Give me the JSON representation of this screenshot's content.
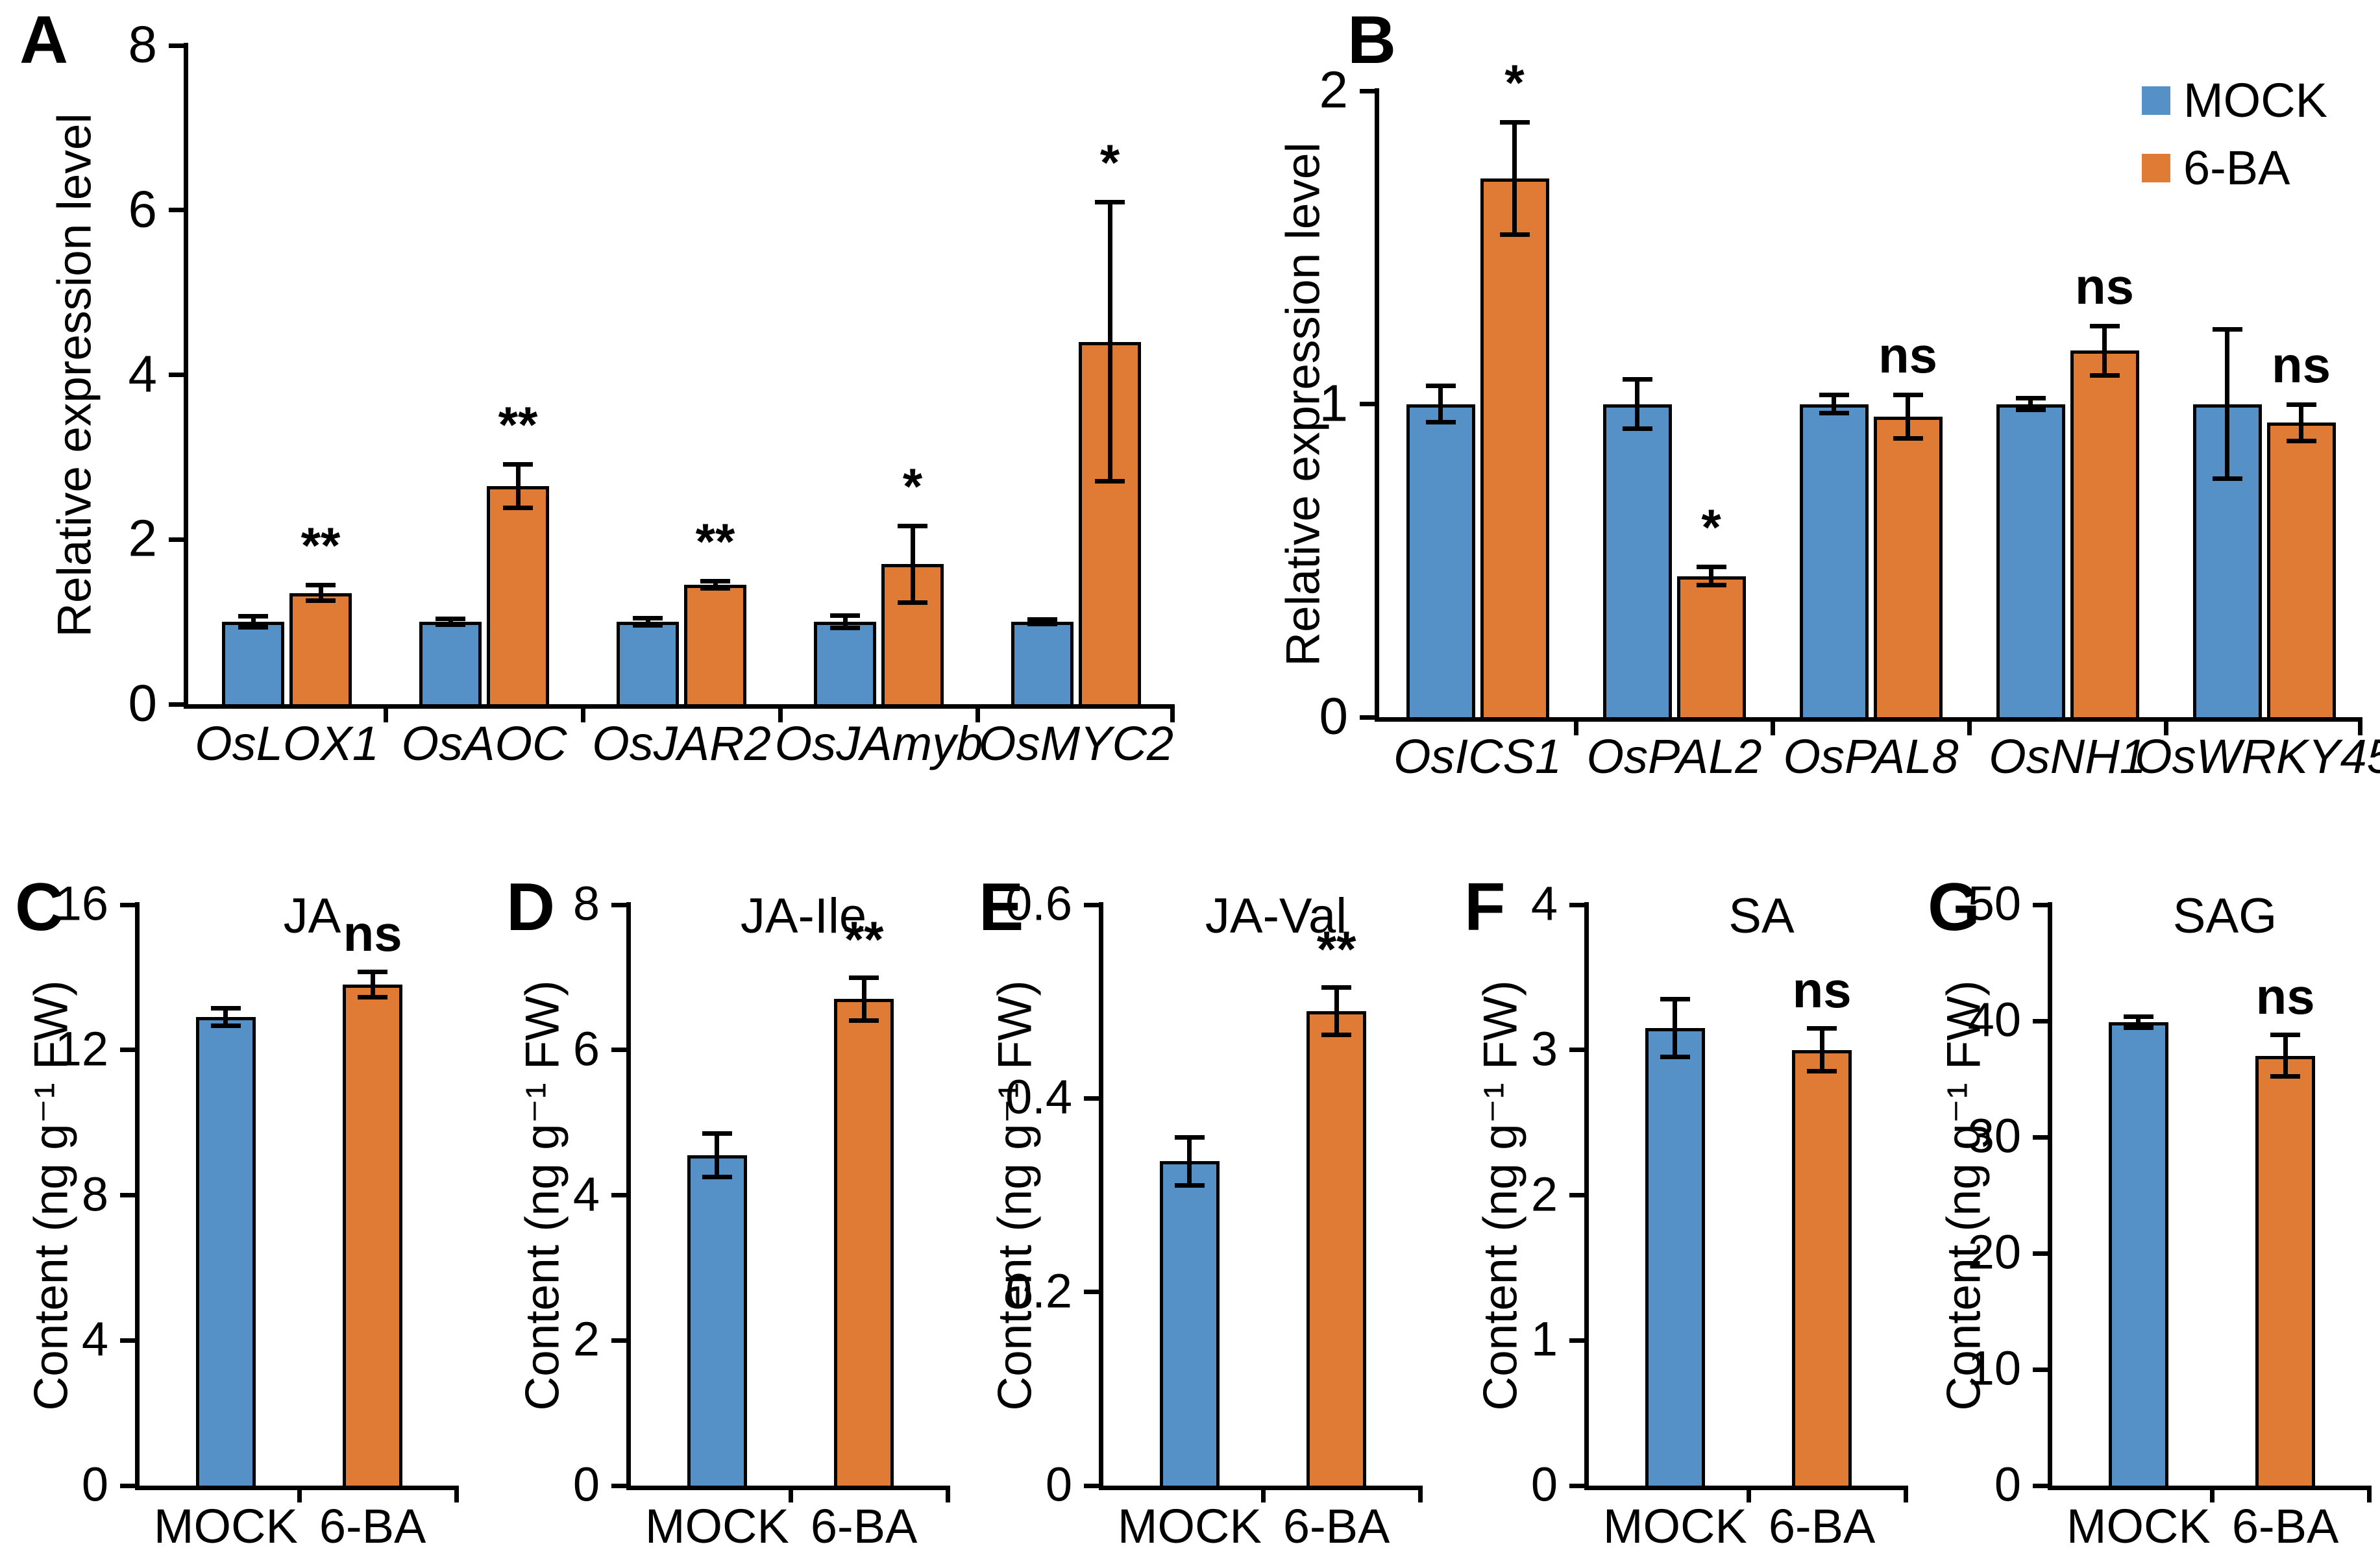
{
  "colors": {
    "mock": "#5590C7",
    "six_ba": "#E07B35",
    "axis": "#000000",
    "background": "#FFFFFF"
  },
  "legend": {
    "items": [
      {
        "label": "MOCK",
        "color": "mock"
      },
      {
        "label": "6-BA",
        "color": "six_ba"
      }
    ]
  },
  "chart_data": [
    {
      "panel": "A",
      "type": "bar",
      "title": null,
      "ylabel": "Relative expression level",
      "ylim": [
        0,
        8
      ],
      "yticks": [
        "0",
        "2",
        "4",
        "6",
        "8"
      ],
      "grid": false,
      "categories": [
        "OsLOX1",
        "OsAOC",
        "OsJAR2",
        "OsJAmyb",
        "OsMYC2"
      ],
      "categories_italic": true,
      "series": [
        {
          "name": "MOCK",
          "color": "mock",
          "values": [
            1.0,
            1.0,
            1.0,
            1.0,
            1.0
          ],
          "errors": [
            0.07,
            0.04,
            0.05,
            0.08,
            0.03
          ]
        },
        {
          "name": "6-BA",
          "color": "six_ba",
          "values": [
            1.35,
            2.65,
            1.45,
            1.7,
            4.4
          ],
          "errors": [
            0.1,
            0.27,
            0.05,
            0.47,
            1.7
          ]
        }
      ],
      "significance": [
        "**",
        "**",
        "**",
        "*",
        "*"
      ],
      "legend_visible": false
    },
    {
      "panel": "B",
      "type": "bar",
      "title": null,
      "ylabel": "Relative expression level",
      "ylim": [
        0,
        2
      ],
      "yticks": [
        "0",
        "1",
        "2"
      ],
      "grid": false,
      "categories": [
        "OsICS1",
        "OsPAL2",
        "OsPAL8",
        "OsNH1",
        "OsWRKY45"
      ],
      "categories_italic": true,
      "series": [
        {
          "name": "MOCK",
          "color": "mock",
          "values": [
            1.0,
            1.0,
            1.0,
            1.0,
            1.0
          ],
          "errors": [
            0.06,
            0.08,
            0.03,
            0.02,
            0.24
          ]
        },
        {
          "name": "6-BA",
          "color": "six_ba",
          "values": [
            1.72,
            0.45,
            0.96,
            1.17,
            0.94
          ],
          "errors": [
            0.18,
            0.03,
            0.07,
            0.08,
            0.06
          ]
        }
      ],
      "significance": [
        "*",
        "*",
        "ns",
        "ns",
        "ns"
      ],
      "legend_visible": true,
      "legend_position": "top-right"
    },
    {
      "panel": "C",
      "type": "bar",
      "title": "JA",
      "ylabel": "Content (ng g⁻¹ FW)",
      "ylim": [
        0,
        16
      ],
      "yticks": [
        "0",
        "4",
        "8",
        "12",
        "16"
      ],
      "grid": false,
      "bars": [
        {
          "label": "MOCK",
          "color": "mock",
          "value": 12.9,
          "error": 0.25,
          "sig": null
        },
        {
          "label": "6-BA",
          "color": "six_ba",
          "value": 13.8,
          "error": 0.35,
          "sig": "ns"
        }
      ]
    },
    {
      "panel": "D",
      "type": "bar",
      "title": "JA-Ile",
      "ylabel": "Content (ng g⁻¹ FW)",
      "ylim": [
        0,
        8
      ],
      "yticks": [
        "0",
        "2",
        "4",
        "6",
        "8"
      ],
      "grid": false,
      "bars": [
        {
          "label": "MOCK",
          "color": "mock",
          "value": 4.55,
          "error": 0.3,
          "sig": null
        },
        {
          "label": "6-BA",
          "color": "six_ba",
          "value": 6.7,
          "error": 0.3,
          "sig": "**"
        }
      ]
    },
    {
      "panel": "E",
      "type": "bar",
      "title": "JA-Val",
      "ylabel": "Content (ng g⁻¹ FW)",
      "ylim": [
        0,
        0.6
      ],
      "yticks": [
        "0",
        "0.2",
        "0.4",
        "0.6"
      ],
      "grid": false,
      "bars": [
        {
          "label": "MOCK",
          "color": "mock",
          "value": 0.335,
          "error": 0.025,
          "sig": null
        },
        {
          "label": "6-BA",
          "color": "six_ba",
          "value": 0.49,
          "error": 0.025,
          "sig": "**"
        }
      ]
    },
    {
      "panel": "F",
      "type": "bar",
      "title": "SA",
      "ylabel": "Content (ng g⁻¹ FW)",
      "ylim": [
        0,
        4
      ],
      "yticks": [
        "0",
        "1",
        "2",
        "3",
        "4"
      ],
      "grid": false,
      "bars": [
        {
          "label": "MOCK",
          "color": "mock",
          "value": 3.15,
          "error": 0.2,
          "sig": null
        },
        {
          "label": "6-BA",
          "color": "six_ba",
          "value": 3.0,
          "error": 0.15,
          "sig": "ns"
        }
      ]
    },
    {
      "panel": "G",
      "type": "bar",
      "title": "SAG",
      "ylabel": "Content (ng g⁻¹ FW)",
      "ylim": [
        0,
        50
      ],
      "yticks": [
        "0",
        "10",
        "20",
        "30",
        "40",
        "50"
      ],
      "grid": false,
      "bars": [
        {
          "label": "MOCK",
          "color": "mock",
          "value": 39.9,
          "error": 0.5,
          "sig": null
        },
        {
          "label": "6-BA",
          "color": "six_ba",
          "value": 37.0,
          "error": 1.8,
          "sig": "ns"
        }
      ]
    }
  ]
}
